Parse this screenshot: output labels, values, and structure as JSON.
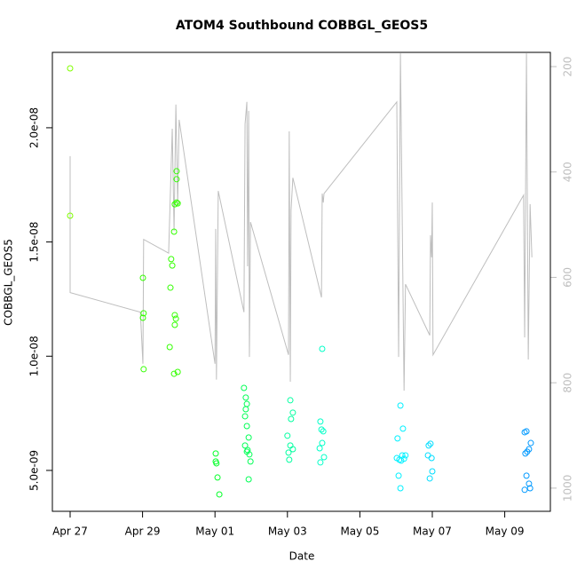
{
  "chart_data": {
    "type": "scatter",
    "title": "ATOM4 Southbound COBBGL_GEOS5",
    "x_label": "Date",
    "y_label": "COBBGL_GEOS5",
    "xlim": [
      -0.49,
      13.26
    ],
    "ylim": [
      3.21e-09,
      2.33e-08
    ],
    "y2lim": [
      1044,
      173
    ],
    "xticks": [
      {
        "value": 0,
        "label": "Apr 27"
      },
      {
        "value": 2,
        "label": "Apr 29"
      },
      {
        "value": 4,
        "label": "May 01"
      },
      {
        "value": 6,
        "label": "May 03"
      },
      {
        "value": 8,
        "label": "May 05"
      },
      {
        "value": 10,
        "label": "May 07"
      },
      {
        "value": 12,
        "label": "May 09"
      }
    ],
    "yticks": [
      {
        "value": 5e-09,
        "label": "5.0e-09"
      },
      {
        "value": 1e-08,
        "label": "1.0e-08"
      },
      {
        "value": 1.5e-08,
        "label": "1.5e-08"
      },
      {
        "value": 2e-08,
        "label": "2.0e-08"
      }
    ],
    "y2ticks": [
      200,
      400,
      600,
      800,
      1000
    ],
    "y2_color": "#bebebe",
    "series": [
      {
        "type": "line",
        "axis": "y2",
        "color": "#bebebe",
        "x": [
          0,
          0,
          1.94,
          2.01,
          2.03,
          2.72,
          2.82,
          2.87,
          2.92,
          2.97,
          3.01,
          4.0,
          4.02,
          4.04,
          4.09,
          4.8,
          4.83,
          4.88,
          4.9,
          4.93,
          4.95,
          4.98,
          6.03,
          6.05,
          6.08,
          6.1,
          6.15,
          6.94,
          6.96,
          6.99,
          7.01,
          9.02,
          9.07,
          9.12,
          9.14,
          9.22,
          9.26,
          9.93,
          9.95,
          9.98,
          10.0,
          10.02,
          12.52,
          12.55,
          12.6,
          12.65,
          12.7,
          12.75
        ],
        "values": [
          370,
          629,
          666,
          764,
          528,
          554,
          318,
          512,
          272,
          461,
          301,
          764,
          508,
          794,
          436,
          666,
          309,
          267,
          579,
          284,
          751,
          495,
          747,
          323,
          798,
          473,
          411,
          638,
          441,
          458,
          441,
          267,
          751,
          175,
          301,
          815,
          613,
          710,
          520,
          562,
          458,
          747,
          444,
          714,
          175,
          756,
          461,
          562
        ]
      },
      {
        "color": "#80ff00",
        "x": [
          0,
          0
        ],
        "values": [
          2.26e-08,
          1.615e-08
        ]
      },
      {
        "color": "#33ff00",
        "x": [
          2.01,
          2.03,
          2.01,
          2.03,
          2.79,
          2.82,
          2.77,
          2.87,
          2.89,
          2.94,
          2.97,
          2.94,
          2.94,
          2.89,
          2.92,
          2.89,
          2.75,
          2.87,
          2.97
        ],
        "values": [
          1.343e-08,
          1.188e-08,
          1.168e-08,
          9.43e-09,
          1.425e-08,
          1.397e-08,
          1.3e-08,
          1.545e-08,
          1.665e-08,
          1.673e-08,
          1.669e-08,
          1.81e-08,
          1.775e-08,
          1.18e-08,
          1.164e-08,
          1.137e-08,
          1.04e-08,
          9.23e-09,
          9.31e-09
        ]
      },
      {
        "color": "#00ff26",
        "x": [
          4.02,
          4.04,
          4.07,
          4.12,
          4.02
        ],
        "values": [
          5.74e-09,
          5.31e-09,
          4.69e-09,
          3.95e-09,
          5.39e-09
        ]
      },
      {
        "color": "#00ff55",
        "x": [
          4.8,
          4.85,
          4.88,
          4.85,
          4.83,
          4.88,
          4.93,
          4.83,
          4.9,
          4.95,
          4.98,
          4.93,
          4.88
        ],
        "values": [
          8.61e-09,
          8.19e-09,
          7.91e-09,
          7.68e-09,
          7.37e-09,
          6.94e-09,
          6.44e-09,
          6.09e-09,
          5.89e-09,
          5.7e-09,
          5.39e-09,
          4.61e-09,
          5.82e-09
        ]
      },
      {
        "color": "#00ffa0",
        "x": [
          6.08,
          6.15,
          6.1,
          6.0,
          6.08,
          6.15,
          6.03,
          6.05
        ],
        "values": [
          8.07e-09,
          7.53e-09,
          7.25e-09,
          6.52e-09,
          6.09e-09,
          5.93e-09,
          5.78e-09,
          5.47e-09
        ]
      },
      {
        "color": "#00ffc8",
        "x": [
          6.96,
          6.91,
          6.94,
          6.99,
          6.96,
          6.89,
          7.01,
          6.91
        ],
        "values": [
          1.032e-08,
          7.14e-09,
          6.79e-09,
          6.71e-09,
          6.2e-09,
          5.97e-09,
          5.58e-09,
          5.35e-09
        ]
      },
      {
        "color": "#00f0ff",
        "x": [
          9.12,
          9.19,
          9.04,
          9.02,
          9.09,
          9.14,
          9.22,
          9.26,
          9.07,
          9.12,
          9.17
        ],
        "values": [
          7.84e-09,
          6.83e-09,
          6.4e-09,
          5.54e-09,
          5.47e-09,
          5.43e-09,
          5.51e-09,
          5.66e-09,
          4.77e-09,
          4.22e-09,
          5.66e-09
        ]
      },
      {
        "color": "#00ddff",
        "x": [
          9.9,
          9.95,
          9.88,
          9.98,
          10.0,
          9.93
        ],
        "values": [
          6.09e-09,
          6.17e-09,
          5.66e-09,
          5.54e-09,
          4.96e-09,
          4.65e-09
        ]
      },
      {
        "color": "#0099ff",
        "x": [
          12.55,
          12.6,
          12.72,
          12.67,
          12.62,
          12.57,
          12.6,
          12.67,
          12.7,
          12.55
        ],
        "values": [
          6.67e-09,
          6.71e-09,
          6.2e-09,
          5.93e-09,
          5.82e-09,
          5.74e-09,
          4.77e-09,
          4.42e-09,
          4.22e-09,
          4.15e-09
        ]
      }
    ]
  }
}
